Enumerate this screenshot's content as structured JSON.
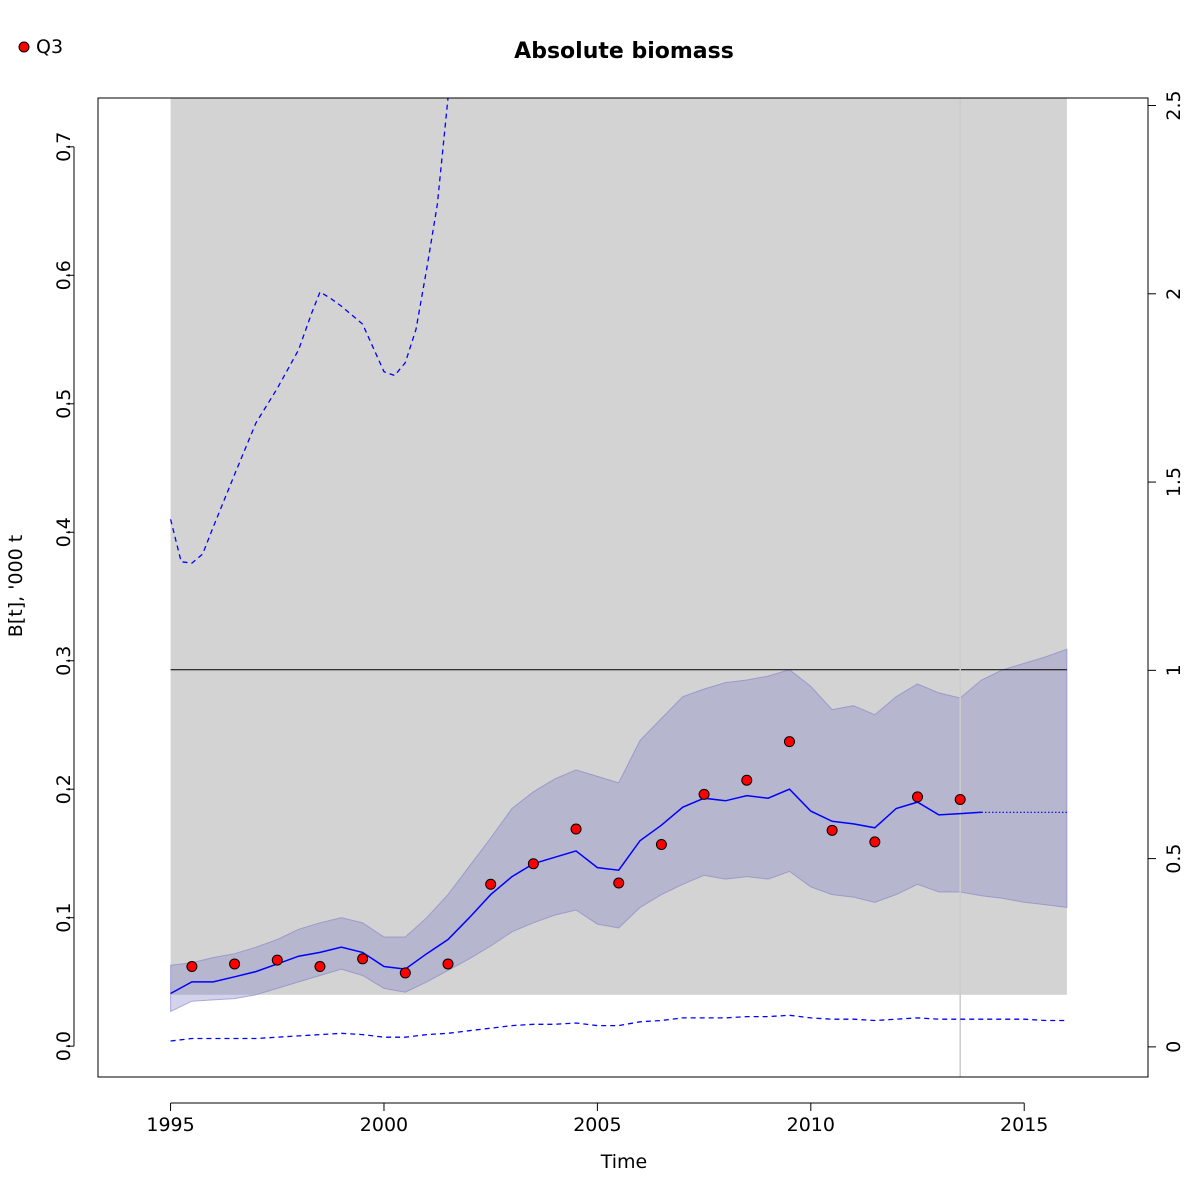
{
  "chart_data": {
    "type": "line",
    "title": "Absolute biomass",
    "xlabel": "Time",
    "ylabel": "B[t], '000 t",
    "xlim": [
      1993.3,
      2017.9
    ],
    "ylim": [
      -0.024,
      0.738
    ],
    "y2lim": [
      -0.08,
      2.52
    ],
    "x_ticks": [
      1995,
      2000,
      2005,
      2010,
      2015
    ],
    "y_ticks": [
      0.0,
      0.1,
      0.2,
      0.3,
      0.4,
      0.5,
      0.6,
      0.7
    ],
    "y2_ticks": [
      0,
      0.5,
      1,
      1.5,
      2,
      2.5
    ],
    "legend": {
      "position": "top-left",
      "label": "Q3",
      "marker_color": "#ff0000"
    },
    "colors": {
      "fill": "#d3d3d3",
      "band": "#8080c8",
      "line": "#0000ff",
      "points": "#ff0000",
      "ref": "#000000",
      "vline": "#cccccc"
    },
    "shaded_region": {
      "x": [
        1995,
        2016
      ],
      "y": [
        0.04,
        0.738
      ]
    },
    "reference_line": {
      "y": 0.293
    },
    "vertical_line": {
      "x": 2013.5
    },
    "median": {
      "x": [
        1995.0,
        1995.5,
        1996.0,
        1996.5,
        1997.0,
        1997.5,
        1998.0,
        1998.5,
        1999.0,
        1999.5,
        2000.0,
        2000.5,
        2001.0,
        2001.5,
        2002.0,
        2002.5,
        2003.0,
        2003.5,
        2004.0,
        2004.5,
        2005.0,
        2005.5,
        2006.0,
        2006.5,
        2007.0,
        2007.5,
        2008.0,
        2008.5,
        2009.0,
        2009.5,
        2010.0,
        2010.5,
        2011.0,
        2011.5,
        2012.0,
        2012.5,
        2013.0,
        2013.5,
        2014.0
      ],
      "y": [
        0.041,
        0.05,
        0.05,
        0.054,
        0.058,
        0.064,
        0.07,
        0.073,
        0.077,
        0.073,
        0.062,
        0.06,
        0.072,
        0.083,
        0.1,
        0.118,
        0.132,
        0.142,
        0.147,
        0.152,
        0.139,
        0.137,
        0.16,
        0.172,
        0.186,
        0.193,
        0.191,
        0.195,
        0.193,
        0.2,
        0.183,
        0.175,
        0.173,
        0.17,
        0.185,
        0.19,
        0.18,
        0.181,
        0.182
      ]
    },
    "median_projection": {
      "x": [
        2014.0,
        2016.0
      ],
      "y": [
        0.182,
        0.182
      ]
    },
    "band": {
      "x": [
        1995.0,
        1995.5,
        1996.0,
        1996.5,
        1997.0,
        1997.5,
        1998.0,
        1998.5,
        1999.0,
        1999.5,
        2000.0,
        2000.5,
        2001.0,
        2001.5,
        2002.0,
        2002.5,
        2003.0,
        2003.5,
        2004.0,
        2004.5,
        2005.0,
        2005.5,
        2006.0,
        2006.5,
        2007.0,
        2007.5,
        2008.0,
        2008.5,
        2009.0,
        2009.5,
        2010.0,
        2010.5,
        2011.0,
        2011.5,
        2012.0,
        2012.5,
        2013.0,
        2013.5,
        2014.0,
        2014.5,
        2015.0,
        2015.5,
        2016.0
      ],
      "upper": [
        0.063,
        0.065,
        0.069,
        0.072,
        0.077,
        0.083,
        0.091,
        0.096,
        0.1,
        0.096,
        0.085,
        0.085,
        0.1,
        0.118,
        0.14,
        0.162,
        0.185,
        0.198,
        0.208,
        0.215,
        0.21,
        0.205,
        0.238,
        0.255,
        0.272,
        0.278,
        0.283,
        0.285,
        0.288,
        0.293,
        0.28,
        0.262,
        0.265,
        0.258,
        0.272,
        0.282,
        0.275,
        0.271,
        0.285,
        0.293,
        0.298,
        0.303,
        0.309
      ]
    },
    "band_lower": [
      0.027,
      0.035,
      0.036,
      0.037,
      0.04,
      0.045,
      0.05,
      0.055,
      0.06,
      0.055,
      0.045,
      0.042,
      0.05,
      0.059,
      0.068,
      0.078,
      0.089,
      0.096,
      0.102,
      0.106,
      0.095,
      0.092,
      0.108,
      0.118,
      0.126,
      0.133,
      0.13,
      0.132,
      0.13,
      0.136,
      0.124,
      0.118,
      0.116,
      0.112,
      0.118,
      0.126,
      0.12,
      0.12,
      0.117,
      0.115,
      0.112,
      0.11,
      0.108
    ],
    "upper_dashed": {
      "x": [
        1995.0,
        1995.25,
        1995.5,
        1995.75,
        1996.0,
        1996.5,
        1997.0,
        1997.5,
        1998.0,
        1998.3,
        1998.5,
        1998.75,
        1999.0,
        1999.5,
        2000.0,
        2000.25,
        2000.5,
        2000.75,
        2001.0,
        2001.25,
        2001.5
      ],
      "y": [
        0.41,
        0.377,
        0.376,
        0.383,
        0.404,
        0.445,
        0.485,
        0.512,
        0.542,
        0.57,
        0.587,
        0.582,
        0.576,
        0.562,
        0.525,
        0.522,
        0.532,
        0.558,
        0.605,
        0.655,
        0.738
      ]
    },
    "lower_dashed": {
      "x": [
        1995.0,
        1995.5,
        1996.0,
        1996.5,
        1997.0,
        1997.5,
        1998.0,
        1998.5,
        1999.0,
        1999.5,
        2000.0,
        2000.5,
        2001.0,
        2001.5,
        2002.0,
        2002.5,
        2003.0,
        2003.5,
        2004.0,
        2004.5,
        2005.0,
        2005.5,
        2006.0,
        2006.5,
        2007.0,
        2007.5,
        2008.0,
        2008.5,
        2009.0,
        2009.5,
        2010.0,
        2010.5,
        2011.0,
        2011.5,
        2012.0,
        2012.5,
        2013.0,
        2013.5,
        2014.0,
        2014.5,
        2015.0,
        2015.5,
        2016.0
      ],
      "y": [
        0.004,
        0.006,
        0.006,
        0.006,
        0.006,
        0.007,
        0.008,
        0.009,
        0.01,
        0.009,
        0.007,
        0.007,
        0.009,
        0.01,
        0.012,
        0.014,
        0.016,
        0.017,
        0.017,
        0.018,
        0.016,
        0.016,
        0.019,
        0.02,
        0.022,
        0.022,
        0.022,
        0.023,
        0.023,
        0.024,
        0.022,
        0.021,
        0.021,
        0.02,
        0.021,
        0.022,
        0.021,
        0.021,
        0.021,
        0.021,
        0.021,
        0.02,
        0.02
      ]
    },
    "points": {
      "x": [
        1995.5,
        1996.5,
        1997.5,
        1998.5,
        1999.5,
        2000.5,
        2001.5,
        2002.5,
        2003.5,
        2004.5,
        2005.5,
        2006.5,
        2007.5,
        2008.5,
        2009.5,
        2010.5,
        2011.5,
        2012.5,
        2013.5
      ],
      "y": [
        0.062,
        0.064,
        0.067,
        0.062,
        0.068,
        0.057,
        0.064,
        0.126,
        0.142,
        0.169,
        0.127,
        0.157,
        0.196,
        0.207,
        0.237,
        0.168,
        0.159,
        0.194,
        0.192
      ]
    }
  }
}
